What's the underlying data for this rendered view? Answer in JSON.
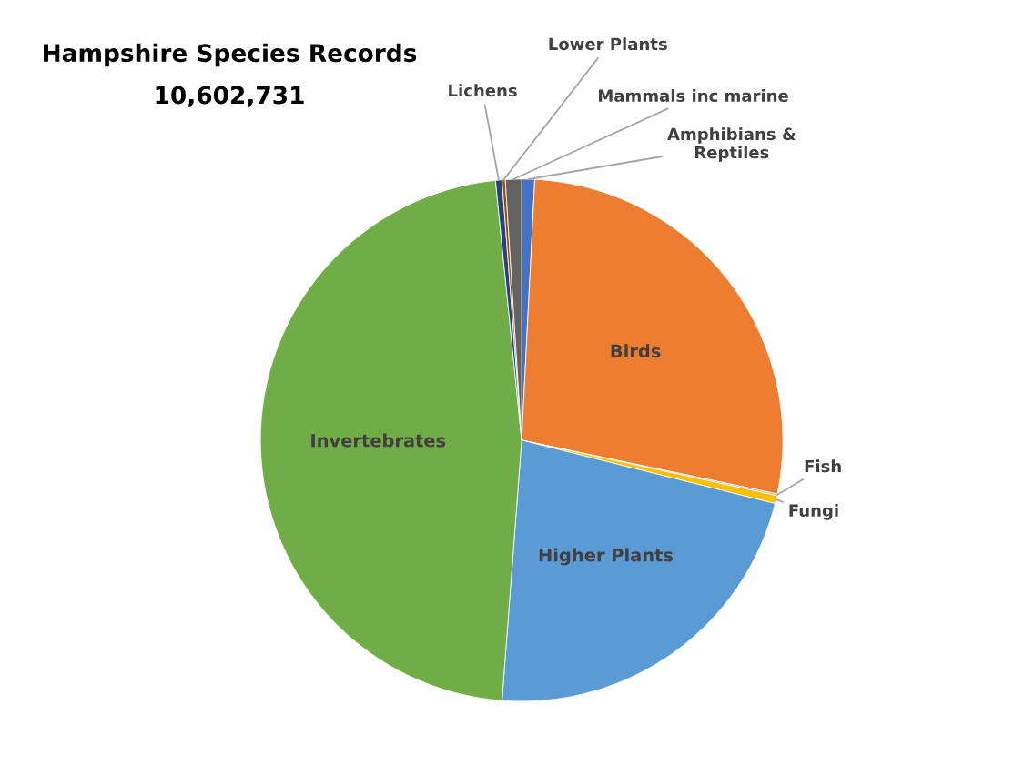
{
  "chart_data": {
    "type": "pie",
    "title": "Hampshire Species Records",
    "subtitle": "10,602,731",
    "categories": [
      "Amphibians &\nReptiles",
      "Birds",
      "Fish",
      "Fungi",
      "Higher Plants",
      "Invertebrates",
      "Lichens",
      "Lower Plants",
      "Mammals inc marine"
    ],
    "values": [
      0.8,
      27.5,
      0.1,
      0.5,
      22.3,
      47.2,
      0.4,
      0.2,
      1.0
    ],
    "colors": [
      "#4472c4",
      "#ed7d31",
      "#a5a5a5",
      "#ffc000",
      "#5b9bd5",
      "#70ad47",
      "#264478",
      "#9e480e",
      "#636363"
    ]
  }
}
